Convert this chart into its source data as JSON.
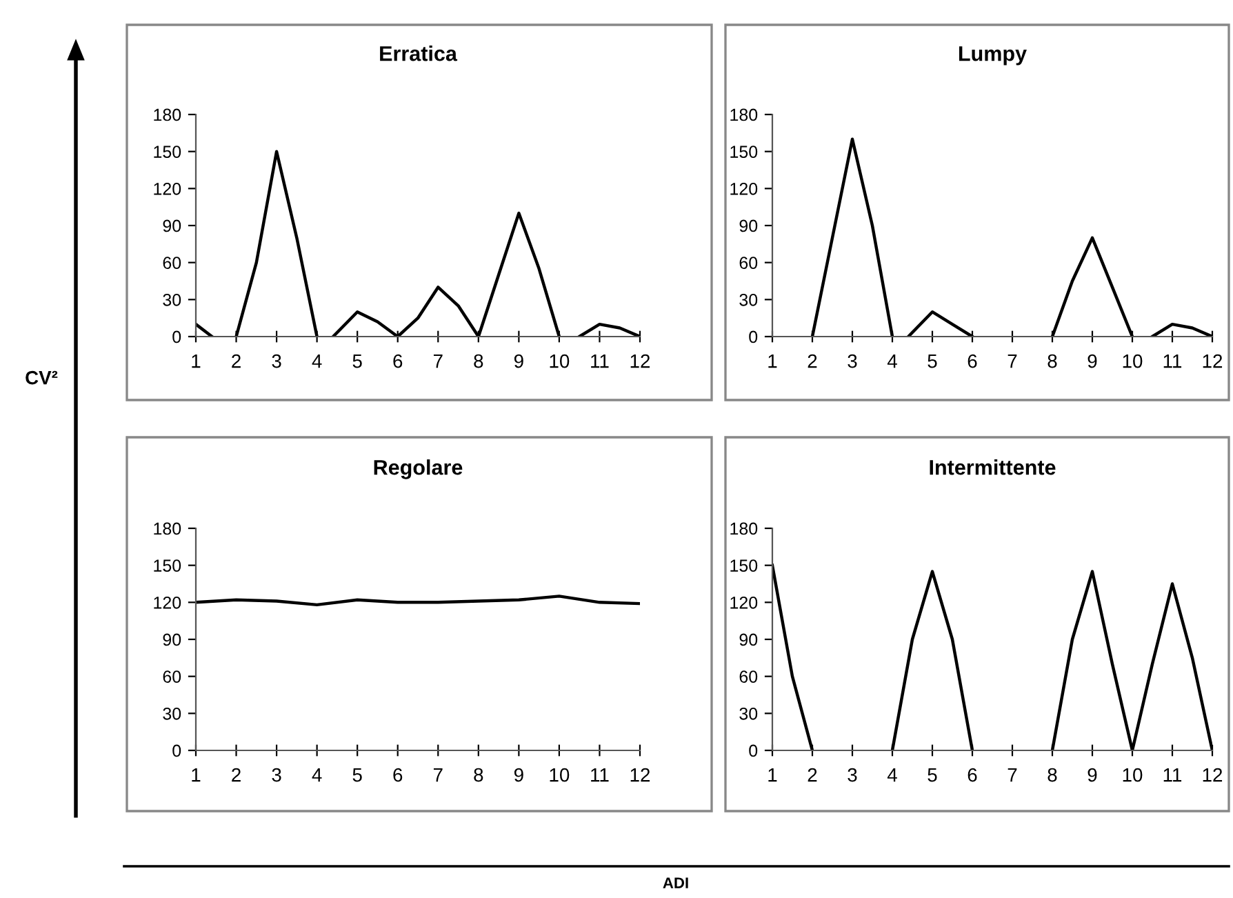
{
  "chart_data": [
    {
      "type": "line",
      "title": "Erratica",
      "annotations": [
        "CV²",
        "ADI"
      ],
      "xlim": [
        1,
        12
      ],
      "xticks": [
        1,
        2,
        3,
        4,
        5,
        6,
        7,
        8,
        9,
        10,
        11,
        12
      ],
      "ylim": [
        0,
        180
      ],
      "yticks": [
        0,
        30,
        60,
        90,
        120,
        150,
        180
      ],
      "grid": false,
      "marker": "none",
      "line_style": "solid",
      "series": [
        {
          "color": "#000000",
          "x": [
            1,
            1.4,
            1.7,
            2,
            2.5,
            3,
            3.5,
            4,
            4.2,
            4.4,
            5,
            5.5,
            6,
            6.5,
            7,
            7.5,
            8,
            8.5,
            9,
            9.5,
            10,
            10.25,
            10.5,
            11,
            11.5,
            12
          ],
          "values": [
            10,
            0,
            null,
            0,
            60,
            150,
            80,
            0,
            null,
            0,
            20,
            12,
            0,
            15,
            40,
            25,
            0,
            50,
            100,
            55,
            0,
            null,
            0,
            10,
            7,
            0
          ]
        }
      ]
    },
    {
      "type": "line",
      "title": "Lumpy",
      "xlim": [
        1,
        12
      ],
      "xticks": [
        1,
        2,
        3,
        4,
        5,
        6,
        7,
        8,
        9,
        10,
        11,
        12
      ],
      "ylim": [
        0,
        180
      ],
      "yticks": [
        0,
        30,
        60,
        90,
        120,
        150,
        180
      ],
      "grid": false,
      "marker": "none",
      "line_style": "solid",
      "series": [
        {
          "color": "#000000",
          "x": [
            2,
            2.5,
            3,
            3.5,
            4,
            4.2,
            4.4,
            5,
            5.5,
            6,
            7,
            8,
            8.5,
            9,
            9.5,
            10,
            10.25,
            10.5,
            11,
            11.5,
            12
          ],
          "values": [
            0,
            80,
            160,
            90,
            0,
            null,
            0,
            20,
            10,
            0,
            null,
            0,
            45,
            80,
            40,
            0,
            null,
            0,
            10,
            7,
            0
          ]
        }
      ]
    },
    {
      "type": "line",
      "title": "Regolare",
      "xlim": [
        1,
        12
      ],
      "xticks": [
        1,
        2,
        3,
        4,
        5,
        6,
        7,
        8,
        9,
        10,
        11,
        12
      ],
      "ylim": [
        0,
        180
      ],
      "yticks": [
        0,
        30,
        60,
        90,
        120,
        150,
        180
      ],
      "grid": false,
      "marker": "none",
      "line_style": "solid",
      "series": [
        {
          "color": "#000000",
          "x": [
            1,
            2,
            3,
            4,
            5,
            6,
            7,
            8,
            9,
            10,
            11,
            12
          ],
          "values": [
            120,
            122,
            121,
            118,
            122,
            120,
            120,
            121,
            122,
            125,
            120,
            119
          ]
        }
      ]
    },
    {
      "type": "line",
      "title": "Intermittente",
      "xlim": [
        1,
        12
      ],
      "xticks": [
        1,
        2,
        3,
        4,
        5,
        6,
        7,
        8,
        9,
        10,
        11,
        12
      ],
      "ylim": [
        0,
        180
      ],
      "yticks": [
        0,
        30,
        60,
        90,
        120,
        150,
        180
      ],
      "grid": false,
      "marker": "none",
      "line_style": "solid",
      "series": [
        {
          "color": "#000000",
          "x": [
            1,
            1.5,
            2,
            3,
            4,
            4.5,
            5,
            5.5,
            6,
            7,
            8,
            8.5,
            9,
            9.5,
            10,
            10.5,
            11,
            11.5,
            12
          ],
          "values": [
            150,
            60,
            0,
            null,
            0,
            90,
            145,
            90,
            0,
            null,
            0,
            90,
            145,
            70,
            0,
            70,
            135,
            75,
            0
          ]
        }
      ]
    }
  ]
}
